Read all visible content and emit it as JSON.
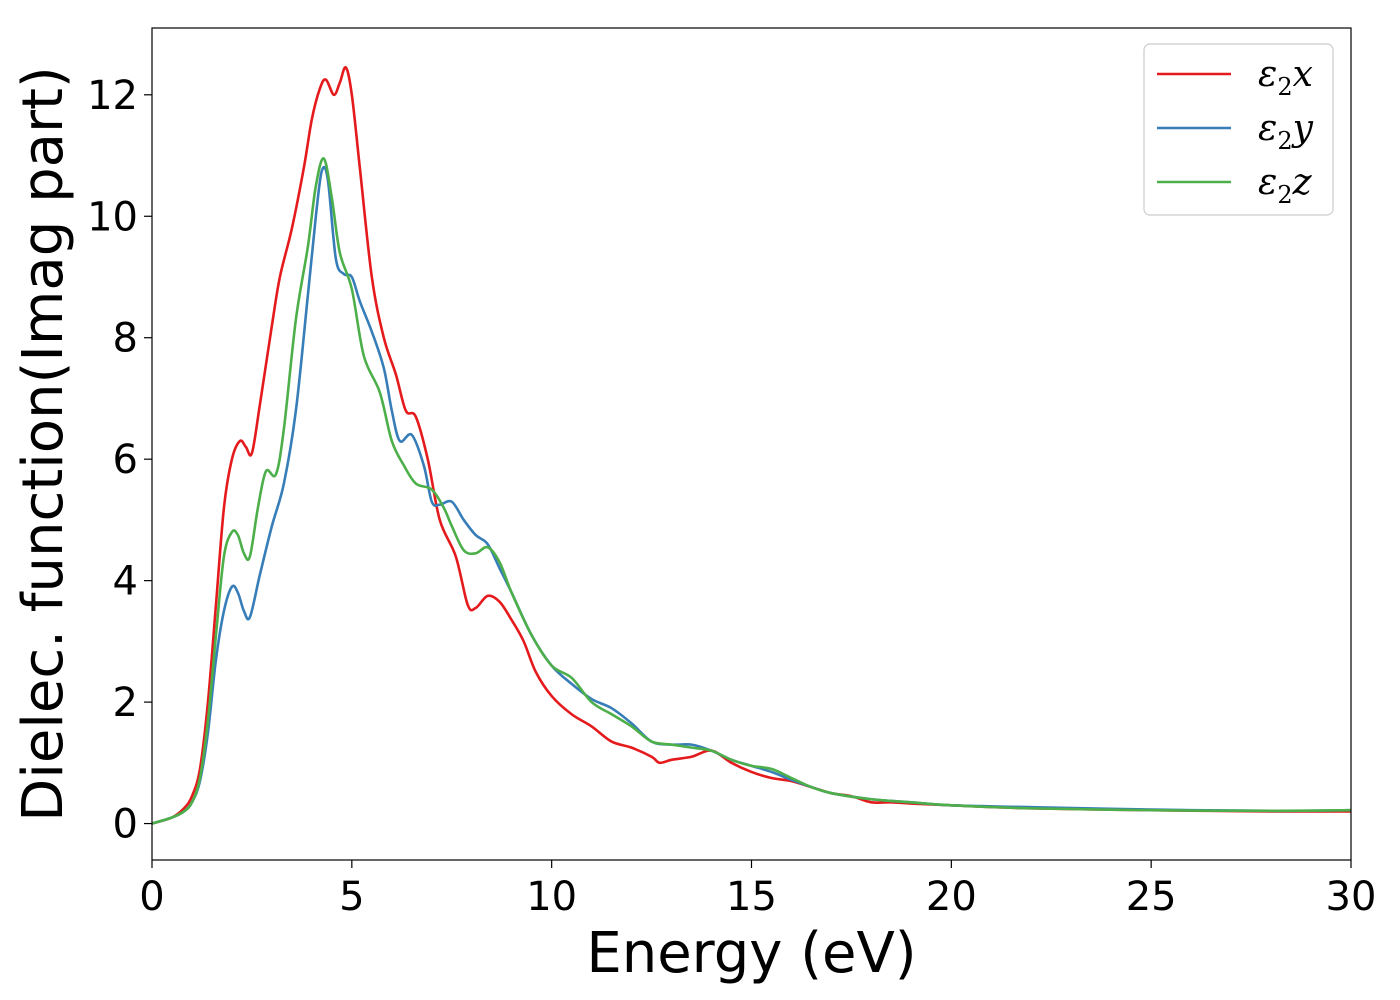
{
  "chart_data": {
    "type": "line",
    "title": "",
    "xlabel": "Energy (eV)",
    "ylabel": "Dielec. function(Imag part)",
    "xlim": [
      0,
      30
    ],
    "ylim": [
      -0.6,
      13.1
    ],
    "xticks": [
      0,
      5,
      10,
      15,
      20,
      25,
      30
    ],
    "yticks": [
      0,
      2,
      4,
      6,
      8,
      10,
      12
    ],
    "grid": false,
    "legend_position": "top-right",
    "series": [
      {
        "name": "ε2x",
        "legend_base": "ε",
        "legend_sub": "2",
        "legend_var": "x",
        "color": "#e41a1c",
        "points": [
          [
            0,
            0
          ],
          [
            0.5,
            0.1
          ],
          [
            0.8,
            0.25
          ],
          [
            1.0,
            0.45
          ],
          [
            1.2,
            0.9
          ],
          [
            1.4,
            2.0
          ],
          [
            1.6,
            3.6
          ],
          [
            1.8,
            5.2
          ],
          [
            2.0,
            6.0
          ],
          [
            2.2,
            6.3
          ],
          [
            2.35,
            6.2
          ],
          [
            2.5,
            6.1
          ],
          [
            2.7,
            6.9
          ],
          [
            3.0,
            8.2
          ],
          [
            3.2,
            9.0
          ],
          [
            3.5,
            9.8
          ],
          [
            3.8,
            10.8
          ],
          [
            4.0,
            11.6
          ],
          [
            4.2,
            12.1
          ],
          [
            4.35,
            12.25
          ],
          [
            4.55,
            12.0
          ],
          [
            4.7,
            12.2
          ],
          [
            4.85,
            12.45
          ],
          [
            5.0,
            12.0
          ],
          [
            5.2,
            10.8
          ],
          [
            5.5,
            9.0
          ],
          [
            5.8,
            8.0
          ],
          [
            6.1,
            7.4
          ],
          [
            6.35,
            6.8
          ],
          [
            6.6,
            6.7
          ],
          [
            6.9,
            6.0
          ],
          [
            7.2,
            5.0
          ],
          [
            7.6,
            4.4
          ],
          [
            7.9,
            3.6
          ],
          [
            8.1,
            3.55
          ],
          [
            8.4,
            3.75
          ],
          [
            8.7,
            3.65
          ],
          [
            9.0,
            3.35
          ],
          [
            9.3,
            3.0
          ],
          [
            9.6,
            2.5
          ],
          [
            10.0,
            2.1
          ],
          [
            10.5,
            1.8
          ],
          [
            11.0,
            1.6
          ],
          [
            11.5,
            1.35
          ],
          [
            12.0,
            1.25
          ],
          [
            12.5,
            1.1
          ],
          [
            12.7,
            1.0
          ],
          [
            13.0,
            1.05
          ],
          [
            13.5,
            1.1
          ],
          [
            14.0,
            1.2
          ],
          [
            14.5,
            1.0
          ],
          [
            15.0,
            0.85
          ],
          [
            15.5,
            0.75
          ],
          [
            16.0,
            0.7
          ],
          [
            16.5,
            0.6
          ],
          [
            17.0,
            0.5
          ],
          [
            17.5,
            0.45
          ],
          [
            18.0,
            0.35
          ],
          [
            18.5,
            0.35
          ],
          [
            19.0,
            0.33
          ],
          [
            20.0,
            0.3
          ],
          [
            22.0,
            0.25
          ],
          [
            25.0,
            0.22
          ],
          [
            28.0,
            0.2
          ],
          [
            30.0,
            0.2
          ]
        ]
      },
      {
        "name": "ε2y",
        "legend_base": "ε",
        "legend_sub": "2",
        "legend_var": "y",
        "color": "#377eb8",
        "points": [
          [
            0,
            0
          ],
          [
            0.5,
            0.1
          ],
          [
            0.8,
            0.2
          ],
          [
            1.0,
            0.35
          ],
          [
            1.2,
            0.7
          ],
          [
            1.4,
            1.5
          ],
          [
            1.6,
            2.7
          ],
          [
            1.8,
            3.5
          ],
          [
            2.0,
            3.9
          ],
          [
            2.15,
            3.8
          ],
          [
            2.3,
            3.5
          ],
          [
            2.45,
            3.4
          ],
          [
            2.7,
            4.1
          ],
          [
            3.0,
            4.9
          ],
          [
            3.3,
            5.6
          ],
          [
            3.6,
            6.8
          ],
          [
            3.9,
            8.7
          ],
          [
            4.1,
            10.0
          ],
          [
            4.25,
            10.75
          ],
          [
            4.4,
            10.6
          ],
          [
            4.6,
            9.3
          ],
          [
            4.8,
            9.05
          ],
          [
            5.0,
            9.0
          ],
          [
            5.2,
            8.6
          ],
          [
            5.5,
            8.1
          ],
          [
            5.8,
            7.5
          ],
          [
            6.0,
            6.8
          ],
          [
            6.2,
            6.3
          ],
          [
            6.5,
            6.4
          ],
          [
            6.8,
            5.9
          ],
          [
            7.0,
            5.3
          ],
          [
            7.2,
            5.25
          ],
          [
            7.5,
            5.3
          ],
          [
            7.8,
            5.0
          ],
          [
            8.1,
            4.75
          ],
          [
            8.4,
            4.6
          ],
          [
            8.7,
            4.2
          ],
          [
            9.0,
            3.8
          ],
          [
            9.5,
            3.1
          ],
          [
            10.0,
            2.6
          ],
          [
            10.5,
            2.3
          ],
          [
            11.0,
            2.05
          ],
          [
            11.5,
            1.9
          ],
          [
            12.0,
            1.65
          ],
          [
            12.5,
            1.35
          ],
          [
            13.0,
            1.3
          ],
          [
            13.5,
            1.3
          ],
          [
            14.0,
            1.2
          ],
          [
            14.5,
            1.05
          ],
          [
            15.0,
            0.95
          ],
          [
            15.5,
            0.85
          ],
          [
            16.0,
            0.72
          ],
          [
            16.5,
            0.6
          ],
          [
            17.0,
            0.5
          ],
          [
            18.0,
            0.4
          ],
          [
            19.0,
            0.35
          ],
          [
            20.0,
            0.3
          ],
          [
            22.0,
            0.27
          ],
          [
            25.0,
            0.23
          ],
          [
            28.0,
            0.21
          ],
          [
            30.0,
            0.22
          ]
        ]
      },
      {
        "name": "ε2z",
        "legend_base": "ε",
        "legend_sub": "2",
        "legend_var": "z",
        "color": "#4daf4a",
        "points": [
          [
            0,
            0
          ],
          [
            0.5,
            0.1
          ],
          [
            0.8,
            0.2
          ],
          [
            1.0,
            0.35
          ],
          [
            1.2,
            0.75
          ],
          [
            1.4,
            1.7
          ],
          [
            1.6,
            3.1
          ],
          [
            1.8,
            4.4
          ],
          [
            2.0,
            4.8
          ],
          [
            2.15,
            4.75
          ],
          [
            2.3,
            4.45
          ],
          [
            2.45,
            4.4
          ],
          [
            2.65,
            5.2
          ],
          [
            2.85,
            5.8
          ],
          [
            3.1,
            5.75
          ],
          [
            3.3,
            6.5
          ],
          [
            3.6,
            8.3
          ],
          [
            3.9,
            9.5
          ],
          [
            4.1,
            10.5
          ],
          [
            4.3,
            10.95
          ],
          [
            4.5,
            10.3
          ],
          [
            4.7,
            9.4
          ],
          [
            5.0,
            8.8
          ],
          [
            5.3,
            7.7
          ],
          [
            5.7,
            7.1
          ],
          [
            6.0,
            6.3
          ],
          [
            6.3,
            5.9
          ],
          [
            6.6,
            5.6
          ],
          [
            7.0,
            5.5
          ],
          [
            7.3,
            5.2
          ],
          [
            7.5,
            4.9
          ],
          [
            7.8,
            4.5
          ],
          [
            8.1,
            4.45
          ],
          [
            8.4,
            4.55
          ],
          [
            8.7,
            4.3
          ],
          [
            9.0,
            3.8
          ],
          [
            9.5,
            3.1
          ],
          [
            10.0,
            2.6
          ],
          [
            10.5,
            2.4
          ],
          [
            11.0,
            2.0
          ],
          [
            11.5,
            1.8
          ],
          [
            12.0,
            1.6
          ],
          [
            12.5,
            1.35
          ],
          [
            13.0,
            1.3
          ],
          [
            13.5,
            1.25
          ],
          [
            14.0,
            1.2
          ],
          [
            14.5,
            1.05
          ],
          [
            15.0,
            0.95
          ],
          [
            15.5,
            0.9
          ],
          [
            16.0,
            0.75
          ],
          [
            16.5,
            0.6
          ],
          [
            17.0,
            0.5
          ],
          [
            18.0,
            0.4
          ],
          [
            19.0,
            0.35
          ],
          [
            20.0,
            0.3
          ],
          [
            22.0,
            0.25
          ],
          [
            25.0,
            0.22
          ],
          [
            28.0,
            0.21
          ],
          [
            30.0,
            0.22
          ]
        ]
      }
    ]
  }
}
